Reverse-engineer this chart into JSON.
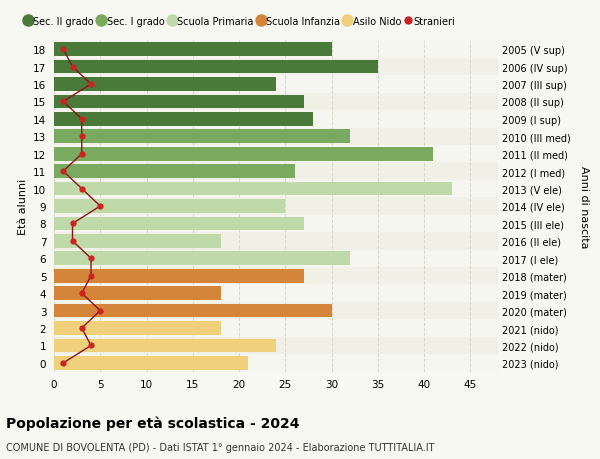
{
  "ages": [
    18,
    17,
    16,
    15,
    14,
    13,
    12,
    11,
    10,
    9,
    8,
    7,
    6,
    5,
    4,
    3,
    2,
    1,
    0
  ],
  "years": [
    "2005 (V sup)",
    "2006 (IV sup)",
    "2007 (III sup)",
    "2008 (II sup)",
    "2009 (I sup)",
    "2010 (III med)",
    "2011 (II med)",
    "2012 (I med)",
    "2013 (V ele)",
    "2014 (IV ele)",
    "2015 (III ele)",
    "2016 (II ele)",
    "2017 (I ele)",
    "2018 (mater)",
    "2019 (mater)",
    "2020 (mater)",
    "2021 (nido)",
    "2022 (nido)",
    "2023 (nido)"
  ],
  "bar_values": [
    30,
    35,
    24,
    27,
    28,
    32,
    41,
    26,
    43,
    25,
    27,
    18,
    32,
    27,
    18,
    30,
    18,
    24,
    21
  ],
  "bar_colors": [
    "#4a7a3a",
    "#4a7a3a",
    "#4a7a3a",
    "#4a7a3a",
    "#4a7a3a",
    "#7aaa60",
    "#7aaa60",
    "#7aaa60",
    "#c0d9a8",
    "#c0d9a8",
    "#c0d9a8",
    "#c0d9a8",
    "#c0d9a8",
    "#d4853a",
    "#d4853a",
    "#d4853a",
    "#f0d07a",
    "#f0d07a",
    "#f0d07a"
  ],
  "stranieri_values": [
    1,
    2,
    4,
    1,
    3,
    3,
    3,
    1,
    3,
    5,
    2,
    2,
    4,
    4,
    3,
    5,
    3,
    4,
    1
  ],
  "legend_labels": [
    "Sec. II grado",
    "Sec. I grado",
    "Scuola Primaria",
    "Scuola Infanzia",
    "Asilo Nido",
    "Stranieri"
  ],
  "legend_colors": [
    "#4a7a3a",
    "#7aaa60",
    "#c0d9a8",
    "#d4853a",
    "#f0d07a",
    "#cc1111"
  ],
  "title": "Popolazione per à scolastica - 2024",
  "title_bold": "Popolazione per età scolastica - 2024",
  "subtitle": "COMUNE DI BOVOLENTA (PD) - Dati ISTAT 1° gennaio 2024 - Elaborazione TUTTITALIA.IT",
  "ylabel_left": "Età alunni",
  "ylabel_right": "Anni di nascita",
  "xlim": [
    0,
    48
  ],
  "xticks": [
    0,
    5,
    10,
    15,
    20,
    25,
    30,
    35,
    40,
    45
  ],
  "bg_color": "#f8f8f2",
  "plot_bg_color": "#f0f0e6",
  "row_alt_color": "#ffffff",
  "grid_color": "#d8d8c8",
  "stranieri_line_color": "#8b1515",
  "stranieri_dot_color": "#cc2222"
}
